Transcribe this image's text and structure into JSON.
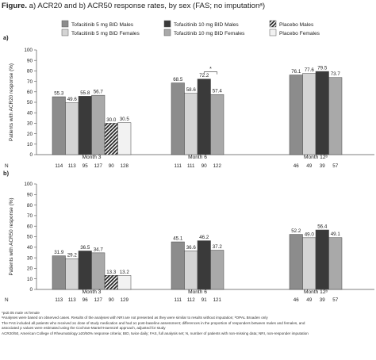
{
  "figure": {
    "label": "Figure.",
    "title": "a) ACR20 and b) ACR50 response rates, by sex (FAS; no imputationᵃ)"
  },
  "legend": [
    {
      "name": "Tofacitinib 5 mg BID Males",
      "fill": "#8c8c8c",
      "pattern": "solid"
    },
    {
      "name": "Tofacitinib 10 mg BID Males",
      "fill": "#3a3a3a",
      "pattern": "solid"
    },
    {
      "name": "Placebo Males",
      "fill": "#2b2b2b",
      "pattern": "hatch"
    },
    {
      "name": "Tofacitinib 5 mg BID Females",
      "fill": "#d4d4d4",
      "pattern": "solid"
    },
    {
      "name": "Tofacitinib 10 mg BID Females",
      "fill": "#a9a9a9",
      "pattern": "solid"
    },
    {
      "name": "Placebo Females",
      "fill": "#f2f2f2",
      "pattern": "solid"
    }
  ],
  "chart_data": [
    {
      "type": "bar",
      "panel_label": "a)",
      "ylabel": "Patients with ACR20 response (%)",
      "ylim": [
        0,
        100
      ],
      "yticks": [
        "0",
        "10",
        "20",
        "30",
        "40",
        "50",
        "60",
        "70",
        "80",
        "90",
        "100"
      ],
      "n_label": "N",
      "categories": [
        "Month 3",
        "Month 6",
        "Month 12ᵇ"
      ],
      "groups": [
        {
          "category": "Month 3",
          "bars": [
            {
              "series": "Tofacitinib 5 mg BID Males",
              "value": 55.3,
              "label": "55.3",
              "n": "114"
            },
            {
              "series": "Tofacitinib 5 mg BID Females",
              "value": 49.6,
              "label": "49.6",
              "n": "113"
            },
            {
              "series": "Tofacitinib 10 mg BID Males",
              "value": 55.8,
              "label": "55.8",
              "n": "95"
            },
            {
              "series": "Tofacitinib 10 mg BID Females",
              "value": 56.7,
              "label": "56.7",
              "n": "127"
            },
            {
              "series": "Placebo Males",
              "value": 30.0,
              "label": "30.0",
              "n": "90"
            },
            {
              "series": "Placebo Females",
              "value": 30.5,
              "label": "30.5",
              "n": "128"
            }
          ]
        },
        {
          "category": "Month 6",
          "bars": [
            {
              "series": "Tofacitinib 5 mg BID Males",
              "value": 68.5,
              "label": "68.5",
              "n": "111"
            },
            {
              "series": "Tofacitinib 5 mg BID Females",
              "value": 58.6,
              "label": "58.6",
              "n": "111"
            },
            {
              "series": "Tofacitinib 10 mg BID Males",
              "value": 72.2,
              "label": "72.2",
              "n": "90"
            },
            {
              "series": "Tofacitinib 10 mg BID Females",
              "value": 57.4,
              "label": "57.4",
              "n": "122"
            }
          ],
          "significance": {
            "from": 2,
            "to": 3,
            "label": "*"
          }
        },
        {
          "category": "Month 12ᵇ",
          "bars": [
            {
              "series": "Tofacitinib 5 mg BID Males",
              "value": 76.1,
              "label": "76.1",
              "n": "46"
            },
            {
              "series": "Tofacitinib 5 mg BID Females",
              "value": 77.6,
              "label": "77.6",
              "n": "49"
            },
            {
              "series": "Tofacitinib 10 mg BID Males",
              "value": 79.5,
              "label": "79.5",
              "n": "39"
            },
            {
              "series": "Tofacitinib 10 mg BID Females",
              "value": 73.7,
              "label": "73.7",
              "n": "57"
            }
          ]
        }
      ]
    },
    {
      "type": "bar",
      "panel_label": "b)",
      "ylabel": "Patients with ACR50 response (%)",
      "ylim": [
        0,
        100
      ],
      "yticks": [
        "0",
        "10",
        "20",
        "30",
        "40",
        "50",
        "60",
        "70",
        "80",
        "90",
        "100"
      ],
      "n_label": "N",
      "categories": [
        "Month 3",
        "Month 6",
        "Month 12ᵇ"
      ],
      "groups": [
        {
          "category": "Month 3",
          "bars": [
            {
              "series": "Tofacitinib 5 mg BID Males",
              "value": 31.9,
              "label": "31.9",
              "n": "113"
            },
            {
              "series": "Tofacitinib 5 mg BID Females",
              "value": 29.2,
              "label": "29.2",
              "n": "113"
            },
            {
              "series": "Tofacitinib 10 mg BID Males",
              "value": 36.5,
              "label": "36.5",
              "n": "96"
            },
            {
              "series": "Tofacitinib 10 mg BID Females",
              "value": 34.7,
              "label": "34.7",
              "n": "127"
            },
            {
              "series": "Placebo Males",
              "value": 13.3,
              "label": "13.3",
              "n": "90"
            },
            {
              "series": "Placebo Females",
              "value": 13.2,
              "label": "13.2",
              "n": "129"
            }
          ]
        },
        {
          "category": "Month 6",
          "bars": [
            {
              "series": "Tofacitinib 5 mg BID Males",
              "value": 45.1,
              "label": "45.1",
              "n": "111"
            },
            {
              "series": "Tofacitinib 5 mg BID Females",
              "value": 36.6,
              "label": "36.6",
              "n": "112"
            },
            {
              "series": "Tofacitinib 10 mg BID Males",
              "value": 46.2,
              "label": "46.2",
              "n": "91"
            },
            {
              "series": "Tofacitinib 10 mg BID Females",
              "value": 37.2,
              "label": "37.2",
              "n": "121"
            }
          ]
        },
        {
          "category": "Month 12ᵇ",
          "bars": [
            {
              "series": "Tofacitinib 5 mg BID Males",
              "value": 52.2,
              "label": "52.2",
              "n": "46"
            },
            {
              "series": "Tofacitinib 5 mg BID Females",
              "value": 49.0,
              "label": "49.0",
              "n": "49"
            },
            {
              "series": "Tofacitinib 10 mg BID Males",
              "value": 56.4,
              "label": "56.4",
              "n": "39"
            },
            {
              "series": "Tofacitinib 10 mg BID Females",
              "value": 49.1,
              "label": "49.1",
              "n": "57"
            }
          ]
        }
      ]
    }
  ],
  "footnotes": [
    "*p≤0.05 male vs female",
    "ᵃAnalyses were based on observed cases. Results of the analyses with NRI are not presented as they were similar to results without imputation; ᵇOPAL Broaden only",
    "The FAS included all patients who received ≥1 dose of study medication and had ≥1 post-baseline assessment; differences in the proportion of responders between males and females, and",
    "associated p values were estimated using the Cochran-Mantel-Haenszel approach, adjusted for study",
    "ACR20/50, American College of Rheumatology ≥20/50% response criteria; BID, twice daily; FAS, full analysis set; N, number of patients with non-missing data; NRI, non-responder imputation"
  ]
}
